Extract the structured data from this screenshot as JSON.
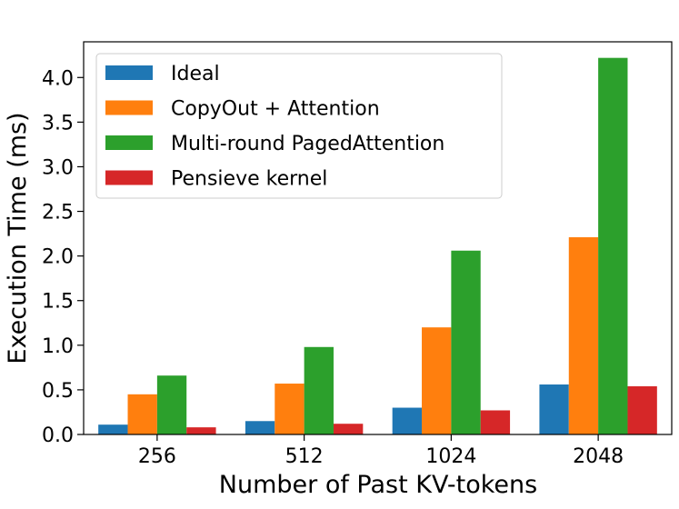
{
  "chart_data": {
    "type": "bar",
    "xlabel": "Number of Past KV-tokens",
    "ylabel": "Execution Time (ms)",
    "categories": [
      "256",
      "512",
      "1024",
      "2048"
    ],
    "ylim": [
      0,
      4.4
    ],
    "yticks": [
      "0.0",
      "0.5",
      "1.0",
      "1.5",
      "2.0",
      "2.5",
      "3.0",
      "3.5",
      "4.0"
    ],
    "grid": false,
    "legend_position": "top-left",
    "series": [
      {
        "name": "Ideal",
        "color": "#1f77b4",
        "values": [
          0.11,
          0.15,
          0.3,
          0.56
        ]
      },
      {
        "name": "CopyOut + Attention",
        "color": "#ff7f0e",
        "values": [
          0.45,
          0.57,
          1.2,
          2.21
        ]
      },
      {
        "name": "Multi-round PagedAttention",
        "color": "#2ca02c",
        "values": [
          0.66,
          0.98,
          2.06,
          4.22
        ]
      },
      {
        "name": "Pensieve kernel",
        "color": "#d62728",
        "values": [
          0.08,
          0.12,
          0.27,
          0.54
        ]
      }
    ]
  }
}
